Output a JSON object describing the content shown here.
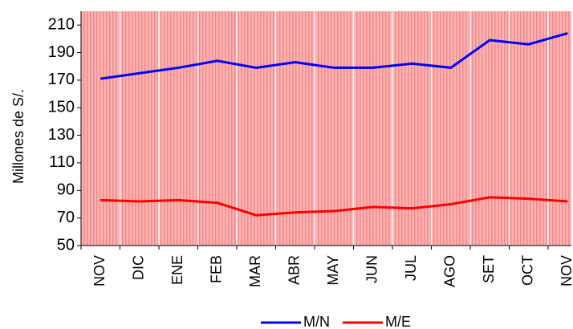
{
  "chart_data": {
    "type": "line",
    "y_label": "Millones de S/.",
    "categories": [
      "NOV",
      "DIC",
      "ENE",
      "FEB",
      "MAR",
      "ABR",
      "MAY",
      "JUN",
      "JUL",
      "AGO",
      "SET",
      "OCT",
      "NOV"
    ],
    "series": [
      {
        "name": "M/N",
        "color": "#0000ff",
        "values": [
          171,
          175,
          179,
          184,
          179,
          183,
          179,
          179,
          182,
          179,
          199,
          196,
          204
        ]
      },
      {
        "name": "M/E",
        "color": "#ff0000",
        "values": [
          83,
          82,
          83,
          81,
          72,
          74,
          75,
          78,
          77,
          80,
          85,
          84,
          82
        ]
      }
    ],
    "ylim": [
      50,
      220
    ],
    "yticks": [
      50,
      70,
      90,
      110,
      130,
      150,
      170,
      190,
      210
    ],
    "grid": true
  }
}
